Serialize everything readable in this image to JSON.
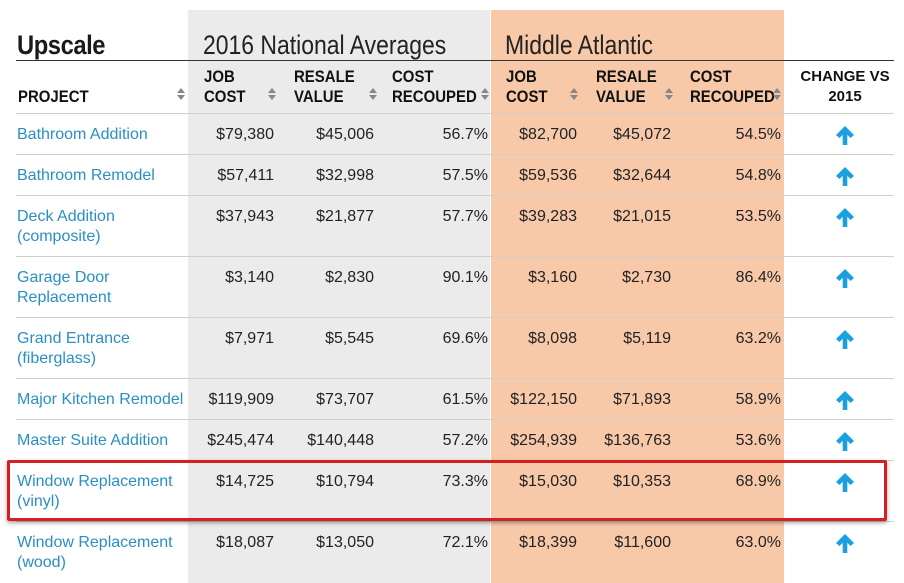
{
  "table": {
    "title": "Upscale",
    "groups": {
      "national": "2016 National Averages",
      "regional": "Middle Atlantic"
    },
    "headers": {
      "project": "PROJECT",
      "nat_job_cost": "JOB\nCOST",
      "nat_resale_value": "RESALE\nVALUE",
      "nat_cost_recouped": "COST\nRECOUPED",
      "reg_job_cost": "JOB\nCOST",
      "reg_resale_value": "RESALE\nVALUE",
      "reg_cost_recouped": "COST\nRECOUPED",
      "change": "CHANGE VS\n2015"
    },
    "change_icon": "arrow-up-icon",
    "arrow_color": "#1a9fe0",
    "link_color": "#2a8fc4",
    "national_bg": "#ebebeb",
    "regional_bg": "#f8c9a8",
    "highlight_color": "#d42020",
    "rows": [
      {
        "project": "Bathroom Addition",
        "nat_job": "$79,380",
        "nat_resale": "$45,006",
        "nat_recouped": "56.7%",
        "reg_job": "$82,700",
        "reg_resale": "$45,072",
        "reg_recouped": "54.5%"
      },
      {
        "project": "Bathroom Remodel",
        "nat_job": "$57,411",
        "nat_resale": "$32,998",
        "nat_recouped": "57.5%",
        "reg_job": "$59,536",
        "reg_resale": "$32,644",
        "reg_recouped": "54.8%"
      },
      {
        "project": "Deck Addition\n(composite)",
        "nat_job": "$37,943",
        "nat_resale": "$21,877",
        "nat_recouped": "57.7%",
        "reg_job": "$39,283",
        "reg_resale": "$21,015",
        "reg_recouped": "53.5%"
      },
      {
        "project": "Garage Door\nReplacement",
        "nat_job": "$3,140",
        "nat_resale": "$2,830",
        "nat_recouped": "90.1%",
        "reg_job": "$3,160",
        "reg_resale": "$2,730",
        "reg_recouped": "86.4%"
      },
      {
        "project": "Grand Entrance\n(fiberglass)",
        "nat_job": "$7,971",
        "nat_resale": "$5,545",
        "nat_recouped": "69.6%",
        "reg_job": "$8,098",
        "reg_resale": "$5,119",
        "reg_recouped": "63.2%"
      },
      {
        "project": "Major Kitchen Remodel",
        "nat_job": "$119,909",
        "nat_resale": "$73,707",
        "nat_recouped": "61.5%",
        "reg_job": "$122,150",
        "reg_resale": "$71,893",
        "reg_recouped": "58.9%"
      },
      {
        "project": "Master Suite Addition",
        "nat_job": "$245,474",
        "nat_resale": "$140,448",
        "nat_recouped": "57.2%",
        "reg_job": "$254,939",
        "reg_resale": "$136,763",
        "reg_recouped": "53.6%"
      },
      {
        "project": "Window Replacement\n(vinyl)",
        "nat_job": "$14,725",
        "nat_resale": "$10,794",
        "nat_recouped": "73.3%",
        "reg_job": "$15,030",
        "reg_resale": "$10,353",
        "reg_recouped": "68.9%"
      },
      {
        "project": "Window Replacement\n(wood)",
        "nat_job": "$18,087",
        "nat_resale": "$13,050",
        "nat_recouped": "72.1%",
        "reg_job": "$18,399",
        "reg_resale": "$11,600",
        "reg_recouped": "63.0%"
      }
    ]
  }
}
